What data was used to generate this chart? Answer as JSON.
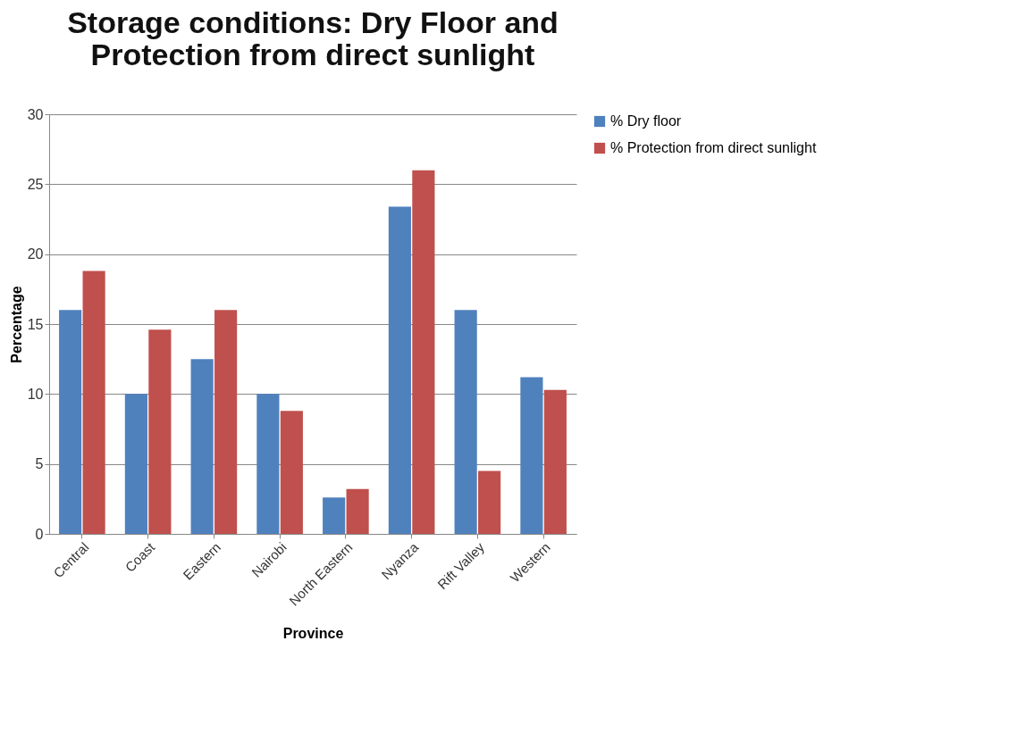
{
  "chart_data": {
    "type": "bar",
    "title": "Storage conditions: Dry Floor and Protection from direct sunlight",
    "xlabel": "Province",
    "ylabel": "Percentage",
    "categories": [
      "Central",
      "Coast",
      "Eastern",
      "Nairobi",
      "North Eastern",
      "Nyanza",
      "Rift Valley",
      "Western"
    ],
    "series": [
      {
        "name": "% Dry floor",
        "color": "#4f81bd",
        "values": [
          16,
          10,
          12.5,
          10,
          2.6,
          23.4,
          16,
          11.2
        ]
      },
      {
        "name": "% Protection from direct sunlight",
        "color": "#c0504d",
        "values": [
          18.8,
          14.6,
          16,
          8.8,
          3.2,
          26,
          4.5,
          10.3
        ]
      }
    ],
    "ylim": [
      0,
      30
    ],
    "yticks": [
      0,
      5,
      10,
      15,
      20,
      25,
      30
    ],
    "grid": "y",
    "legend": "right"
  }
}
